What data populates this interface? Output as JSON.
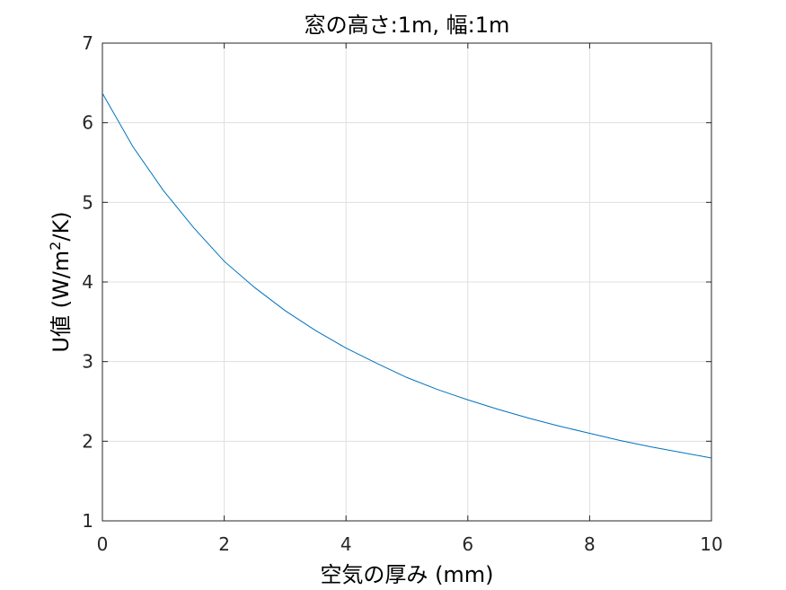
{
  "chart_data": {
    "type": "line",
    "title": "窓の高さ:1m, 幅:1m",
    "xlabel": "空気の厚み (mm)",
    "ylabel_main": "U値 (W/m",
    "ylabel_sup": "2",
    "ylabel_tail": "/K)",
    "xlim": [
      0,
      10
    ],
    "ylim": [
      1,
      7
    ],
    "xticks": [
      "0",
      "2",
      "4",
      "6",
      "8",
      "10"
    ],
    "yticks": [
      "1",
      "2",
      "3",
      "4",
      "5",
      "6",
      "7"
    ],
    "grid": true,
    "line_color": "#0072BD",
    "series": [
      {
        "x": [
          0,
          0.5,
          1,
          1.5,
          2,
          2.5,
          3,
          3.5,
          4,
          4.5,
          5,
          5.5,
          6,
          6.5,
          7,
          7.5,
          8,
          8.5,
          9,
          9.5,
          10
        ],
        "y": [
          6.37,
          5.7,
          5.15,
          4.68,
          4.26,
          3.93,
          3.64,
          3.39,
          3.17,
          2.98,
          2.8,
          2.65,
          2.52,
          2.4,
          2.29,
          2.19,
          2.1,
          2.01,
          1.93,
          1.86,
          1.79
        ]
      }
    ]
  }
}
